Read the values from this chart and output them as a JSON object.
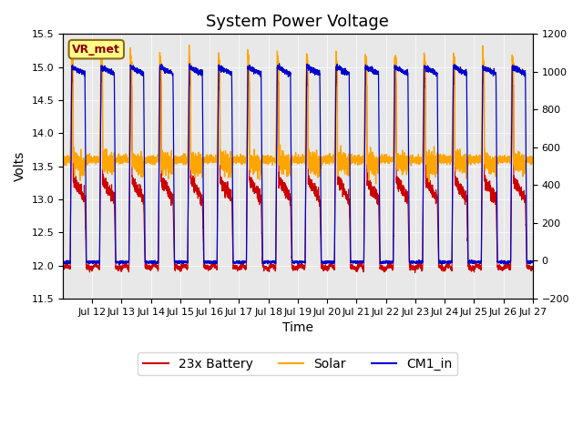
{
  "title": "System Power Voltage",
  "xlabel": "Time",
  "ylabel": "Volts",
  "ylim_left": [
    11.5,
    15.5
  ],
  "ylim_right": [
    -200,
    1200
  ],
  "yticks_left": [
    11.5,
    12.0,
    12.5,
    13.0,
    13.5,
    14.0,
    14.5,
    15.0,
    15.5
  ],
  "yticks_right": [
    -200,
    0,
    200,
    400,
    600,
    800,
    1000,
    1200
  ],
  "num_days": 16,
  "xtick_labels": [
    "Jul 12",
    "Jul 13",
    "Jul 14",
    "Jul 15",
    "Jul 16",
    "Jul 17",
    "Jul 18",
    "Jul 19",
    "Jul 20",
    "Jul 21",
    "Jul 22",
    "Jul 23",
    "Jul 24",
    "Jul 25",
    "Jul 26",
    "Jul 27"
  ],
  "color_battery": "#CC0000",
  "color_solar": "#FFA500",
  "color_cm1": "#0000CC",
  "legend_labels": [
    "23x Battery",
    "Solar",
    "CM1_in"
  ],
  "vr_met_label": "VR_met",
  "vr_met_color": "#8B0000",
  "vr_met_bg": "#FFFF88",
  "vr_met_edge": "#8B6914",
  "background_color": "#E8E8E8",
  "title_fontsize": 13,
  "axis_fontsize": 10,
  "legend_fontsize": 10,
  "points_per_day": 288
}
